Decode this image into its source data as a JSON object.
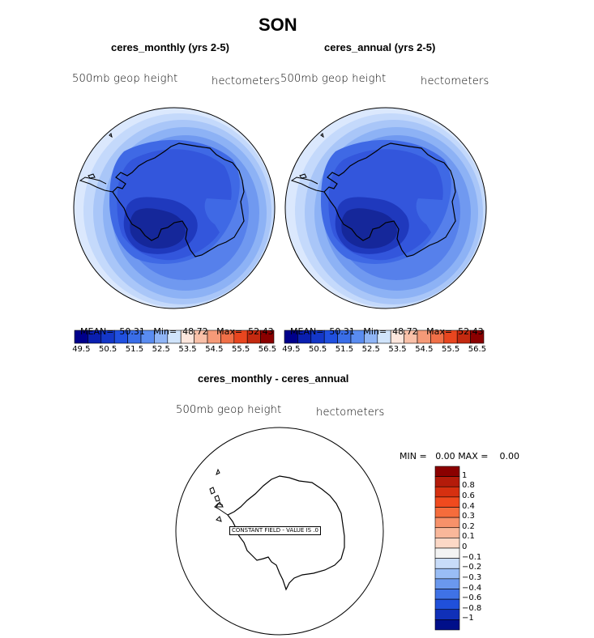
{
  "title": "SON",
  "panels": [
    {
      "subtitle": "ceres_monthly (yrs 2-5)",
      "variable": "500mb geop height",
      "units": "hectometers",
      "stats": {
        "mean_label": "MEAN=",
        "mean": "50.31",
        "min_label": "Min=",
        "min": "48.72",
        "max_label": "Max=",
        "max": "52.43"
      }
    },
    {
      "subtitle": "ceres_annual (yrs 2-5)",
      "variable": "500mb geop height",
      "units": "hectometers",
      "stats": {
        "mean_label": "MEAN=",
        "mean": "50.31",
        "min_label": "Min=",
        "min": "48.72",
        "max_label": "Max=",
        "max": "52.43"
      }
    }
  ],
  "colorbar": {
    "colors": [
      "#00008b",
      "#0a1fb0",
      "#1437c8",
      "#2050e0",
      "#3a6ee8",
      "#5a8cf0",
      "#8fb5f6",
      "#d0e4fb",
      "#fde6dd",
      "#f9c0a8",
      "#f59a78",
      "#f07048",
      "#e8461f",
      "#c42a10",
      "#8b0000"
    ],
    "ticks": [
      "49.5",
      "50.5",
      "51.5",
      "52.5",
      "53.5",
      "54.5",
      "55.5",
      "56.5"
    ]
  },
  "difference": {
    "subtitle": "ceres_monthly - ceres_annual",
    "variable": "500mb geop height",
    "units": "hectometers",
    "min_label": "MIN =",
    "min": "0.00",
    "max_label": "MAX =",
    "max": "0.00",
    "note": "CONSTANT FIELD - VALUE IS .0",
    "colorbar": {
      "colors": [
        "#8b0000",
        "#b41b0a",
        "#d63010",
        "#f04a1e",
        "#f56c3c",
        "#f7916a",
        "#f9b79a",
        "#fcd8c6",
        "#f3f3f3",
        "#c8dcf9",
        "#99bdf5",
        "#6a98ee",
        "#3f72e6",
        "#2050da",
        "#1030b8",
        "#000f8a"
      ],
      "labels": [
        "1",
        "0.8",
        "0.6",
        "0.4",
        "0.3",
        "0.2",
        "0.1",
        "0",
        "−0.1",
        "−0.2",
        "−0.3",
        "−0.4",
        "−0.6",
        "−0.8",
        "−1"
      ]
    }
  },
  "map_fill_levels": [
    "#dbe8fd",
    "#c4d9fb",
    "#a9c6f8",
    "#8db2f5",
    "#7099f0",
    "#5680eb",
    "#3f69e5",
    "#2f56de",
    "#2848d3",
    "#1f39bd",
    "#15279a"
  ]
}
